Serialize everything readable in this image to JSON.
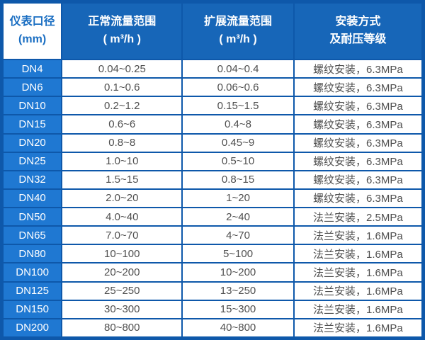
{
  "colors": {
    "grid_border_blue": "#0e58aa",
    "header_bg_blue": "#1766b8",
    "row_label_bg_blue": "#1f78d2",
    "corner_cell_bg": "#ffffff",
    "corner_text_blue": "#1a6ec2",
    "header_text": "#ffffff",
    "data_text_gray": "#4f4f4f",
    "data_cell_bg": "#ffffff"
  },
  "chart_data": {
    "type": "table",
    "title": "",
    "columns": [
      {
        "id": "diameter",
        "line1": "仪表口径",
        "line2": "(mm)"
      },
      {
        "id": "normal_range",
        "line1": "正常流量范围",
        "line2": "( m³/h )"
      },
      {
        "id": "extended_range",
        "line1": "扩展流量范围",
        "line2": "( m³/h )"
      },
      {
        "id": "installation",
        "line1": "安装方式",
        "line2": "及耐压等级"
      }
    ],
    "rows": [
      [
        "DN4",
        "0.04~0.25",
        "0.04~0.4",
        "螺纹安装，6.3MPa"
      ],
      [
        "DN6",
        "0.1~0.6",
        "0.06~0.6",
        "螺纹安装，6.3MPa"
      ],
      [
        "DN10",
        "0.2~1.2",
        "0.15~1.5",
        "螺纹安装，6.3MPa"
      ],
      [
        "DN15",
        "0.6~6",
        "0.4~8",
        "螺纹安装，6.3MPa"
      ],
      [
        "DN20",
        "0.8~8",
        "0.45~9",
        "螺纹安装，6.3MPa"
      ],
      [
        "DN25",
        "1.0~10",
        "0.5~10",
        "螺纹安装，6.3MPa"
      ],
      [
        "DN32",
        "1.5~15",
        "0.8~15",
        "螺纹安装，6.3MPa"
      ],
      [
        "DN40",
        "2.0~20",
        "1~20",
        "螺纹安装，6.3MPa"
      ],
      [
        "DN50",
        "4.0~40",
        "2~40",
        "法兰安装，2.5MPa"
      ],
      [
        "DN65",
        "7.0~70",
        "4~70",
        "法兰安装，1.6MPa"
      ],
      [
        "DN80",
        "10~100",
        "5~100",
        "法兰安装，1.6MPa"
      ],
      [
        "DN100",
        "20~200",
        "10~200",
        "法兰安装，1.6MPa"
      ],
      [
        "DN125",
        "25~250",
        "13~250",
        "法兰安装，1.6MPa"
      ],
      [
        "DN150",
        "30~300",
        "15~300",
        "法兰安装，1.6MPa"
      ],
      [
        "DN200",
        "80~800",
        "40~800",
        "法兰安装，1.6MPa"
      ]
    ]
  }
}
